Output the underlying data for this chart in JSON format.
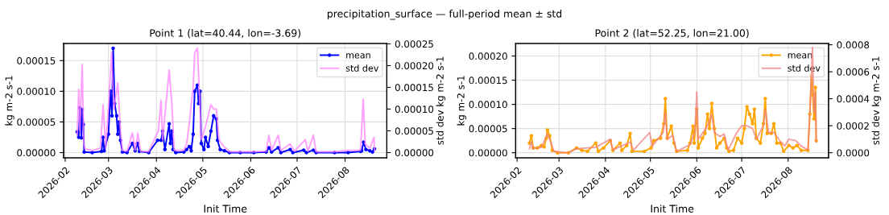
{
  "chart_data": [
    {
      "type": "line",
      "annotations": [
        "precipitation_surface — full-period mean ± std"
      ],
      "title": "Point 1 (lat=40.44, lon=-3.69)",
      "xlabel": "Init Time",
      "ylabel": "kg m-2 s-1",
      "y2label": "std dev kg m-2 s-1",
      "grid": true,
      "legend": "top right",
      "xlim": [
        "2026-01-31",
        "2026-08-28"
      ],
      "xticks": [
        {
          "value": "2026-02-01",
          "label": "2026-02"
        },
        {
          "value": "2026-03-01",
          "label": "2026-03"
        },
        {
          "value": "2026-04-01",
          "label": "2026-04"
        },
        {
          "value": "2026-05-01",
          "label": "2026-05"
        },
        {
          "value": "2026-06-01",
          "label": "2026-06"
        },
        {
          "value": "2026-07-01",
          "label": "2026-07"
        },
        {
          "value": "2026-08-01",
          "label": "2026-08"
        }
      ],
      "ylim": [
        -8.5e-06,
        0.000178
      ],
      "yticks": [
        {
          "value": 0,
          "label": "0.00000"
        },
        {
          "value": 5e-05,
          "label": "0.00005"
        },
        {
          "value": 0.0001,
          "label": "0.00010"
        },
        {
          "value": 0.00015,
          "label": "0.00015"
        }
      ],
      "y2lim": [
        -1.2e-05,
        0.000251
      ],
      "y2ticks": [
        {
          "value": 0,
          "label": "0.00000"
        },
        {
          "value": 5e-05,
          "label": "0.00005"
        },
        {
          "value": 0.0001,
          "label": "0.00010"
        },
        {
          "value": 0.00015,
          "label": "0.00015"
        },
        {
          "value": 0.0002,
          "label": "0.00020"
        },
        {
          "value": 0.00025,
          "label": "0.00025"
        }
      ],
      "series": [
        {
          "name": "mean",
          "color": "#0000ff",
          "marker": "circle",
          "line_style": "solid",
          "x": [
            "2026-02-08T18:00",
            "2026-02-09T18:00",
            "2026-02-10T12:00",
            "2026-02-11T12:00",
            "2026-02-12T00:00",
            "2026-02-12T18:00",
            "2026-02-13T06:00",
            "2026-02-18T12:00",
            "2026-02-24T12:00",
            "2026-02-25T12:00",
            "2026-02-26T06:00",
            "2026-03-01T00:00",
            "2026-03-02T06:00",
            "2026-03-03T06:00",
            "2026-03-04T00:00",
            "2026-03-05T00:00",
            "2026-03-06T06:00",
            "2026-03-07T00:00",
            "2026-03-08T00:00",
            "2026-03-08T18:00",
            "2026-03-10T00:00",
            "2026-03-13T00:00",
            "2026-03-16T12:00",
            "2026-03-18T06:00",
            "2026-03-19T18:00",
            "2026-03-21T00:00",
            "2026-03-27T00:00",
            "2026-04-01T18:00",
            "2026-04-04T00:00",
            "2026-04-05T00:00",
            "2026-04-06T12:00",
            "2026-04-09T06:00",
            "2026-04-10T00:00",
            "2026-04-11T00:00",
            "2026-04-11T18:00",
            "2026-04-13T12:00",
            "2026-04-18T18:00",
            "2026-04-20T12:00",
            "2026-04-22T06:00",
            "2026-04-23T12:00",
            "2026-04-24T18:00",
            "2026-04-25T18:00",
            "2026-04-27T12:00",
            "2026-04-28T06:00",
            "2026-04-29T06:00",
            "2026-04-30T00:00",
            "2026-05-01T18:00",
            "2026-05-02T18:00",
            "2026-05-04T12:00",
            "2026-05-06T06:00",
            "2026-05-08T00:00",
            "2026-05-09T18:00",
            "2026-05-10T12:00",
            "2026-05-12T06:00",
            "2026-05-15T00:00",
            "2026-05-18T06:00",
            "2026-05-25T06:00",
            "2026-06-03T00:00",
            "2026-06-11T00:00",
            "2026-06-12T18:00",
            "2026-06-14T12:00",
            "2026-06-18T18:00",
            "2026-06-20T12:00",
            "2026-06-26T12:00",
            "2026-06-28T06:00",
            "2026-07-05T06:00",
            "2026-07-07T00:00",
            "2026-07-11T12:00",
            "2026-07-13T06:00",
            "2026-07-25T06:00",
            "2026-08-03T00:00",
            "2026-08-11T00:00",
            "2026-08-11T18:00",
            "2026-08-13T00:00",
            "2026-08-14T12:00",
            "2026-08-17T00:00",
            "2026-08-18T18:00",
            "2026-08-20T00:00"
          ],
          "values": [
            3.4e-05,
            2.5e-05,
            7.3e-05,
            2.4e-05,
            7e-05,
            4.6e-05,
            1e-06,
            0,
            2e-06,
            2.5e-05,
            3e-06,
            3e-05,
            0.0001,
            6e-05,
            0.00017,
            8e-05,
            6e-05,
            3e-05,
            5e-05,
            2e-05,
            1e-06,
            0,
            1.5e-05,
            3e-06,
            1.5e-05,
            2e-06,
            0,
            2e-05,
            2e-05,
            3.5e-05,
            5e-06,
            4.7e-05,
            1.5e-05,
            3.5e-05,
            5e-06,
            0,
            1e-06,
            5e-06,
            1e-05,
            3e-06,
            3e-05,
            0.0001,
            0.00011,
            8e-05,
            0.0001,
            1.5e-05,
            5e-06,
            2.5e-05,
            1e-05,
            3.5e-05,
            6e-05,
            5.5e-05,
            2e-05,
            5e-06,
            3e-06,
            0,
            0,
            0,
            1e-06,
            8e-06,
            1e-06,
            8e-06,
            0,
            5e-06,
            0,
            4e-06,
            0,
            4e-06,
            0,
            0,
            0,
            2e-06,
            3e-06,
            1.7e-05,
            5e-06,
            3e-06,
            1e-06,
            6e-06
          ]
        },
        {
          "name": "std dev",
          "color": "#ff80ff",
          "axis": "y2",
          "marker": "none",
          "line_style": "solid",
          "x": [
            "2026-02-08T18:00",
            "2026-02-09T18:00",
            "2026-02-10T12:00",
            "2026-02-12T00:00",
            "2026-02-13T00:00",
            "2026-02-14T00:00",
            "2026-02-18T12:00",
            "2026-02-23T18:00",
            "2026-02-25T12:00",
            "2026-02-27T06:00",
            "2026-03-01T18:00",
            "2026-03-03T00:00",
            "2026-03-04T12:00",
            "2026-03-07T00:00",
            "2026-03-08T18:00",
            "2026-03-10T00:00",
            "2026-03-13T00:00",
            "2026-03-16T12:00",
            "2026-03-18T06:00",
            "2026-03-20T00:00",
            "2026-03-21T18:00",
            "2026-03-27T00:00",
            "2026-04-02T06:00",
            "2026-04-04T00:00",
            "2026-04-05T00:00",
            "2026-04-09T06:00",
            "2026-04-11T00:00",
            "2026-04-12T12:00",
            "2026-04-18T18:00",
            "2026-04-20T12:00",
            "2026-04-22T00:00",
            "2026-04-24T18:00",
            "2026-04-25T18:00",
            "2026-04-27T12:00",
            "2026-04-28T18:00",
            "2026-04-30T00:00",
            "2026-05-02T18:00",
            "2026-05-06T06:00",
            "2026-05-08T00:00",
            "2026-05-09T18:00",
            "2026-05-11T12:00",
            "2026-05-13T06:00",
            "2026-05-15T18:00",
            "2026-05-18T06:00",
            "2026-06-03T00:00",
            "2026-06-11T00:00",
            "2026-06-12T18:00",
            "2026-06-14T12:00",
            "2026-06-18T18:00",
            "2026-06-20T12:00",
            "2026-06-26T12:00",
            "2026-06-29T06:00",
            "2026-07-06T06:00",
            "2026-07-08T00:00",
            "2026-07-11T12:00",
            "2026-07-13T06:00",
            "2026-07-25T06:00",
            "2026-08-03T00:00",
            "2026-08-11T00:00",
            "2026-08-12T18:00",
            "2026-08-14T00:00",
            "2026-08-17T00:00",
            "2026-08-19T18:00",
            "2026-08-20T00:00"
          ],
          "values": [
            4e-05,
            0.000145,
            5e-05,
            0.000203,
            2e-05,
            8e-06,
            5e-06,
            1e-05,
            0.00011,
            1e-05,
            0.00015,
            0.00023,
            0.0001,
            0.00016,
            5e-05,
            5e-06,
            3e-06,
            4.5e-05,
            5e-06,
            4.5e-05,
            3e-06,
            2e-06,
            5e-05,
            0.00012,
            3e-05,
            0.00019,
            0.00011,
            5e-06,
            5e-06,
            2e-05,
            6e-05,
            0.00015,
            0.00023,
            0.00024,
            0.00014,
            3e-05,
            6e-05,
            0.00011,
            0.0001,
            0.0001,
            3e-05,
            2e-05,
            1e-05,
            2e-06,
            2e-06,
            3e-06,
            4e-05,
            5e-06,
            4e-05,
            5e-06,
            2e-05,
            3e-06,
            3e-05,
            3e-06,
            4e-05,
            2e-06,
            2e-06,
            5e-06,
            5e-06,
            0.000123,
            2e-05,
            1e-05,
            3.5e-05,
            5e-06
          ]
        }
      ]
    },
    {
      "type": "line",
      "title": "Point 2 (lat=52.25, lon=21.00)",
      "xlabel": "Init Time",
      "ylabel": "kg m-2 s-1",
      "y2label": "std dev kg m-2 s-1",
      "grid": true,
      "legend": "top right",
      "xlim": [
        "2026-01-31",
        "2026-08-28"
      ],
      "xticks": [
        {
          "value": "2026-02-01",
          "label": "2026-02"
        },
        {
          "value": "2026-03-01",
          "label": "2026-03"
        },
        {
          "value": "2026-04-01",
          "label": "2026-04"
        },
        {
          "value": "2026-05-01",
          "label": "2026-05"
        },
        {
          "value": "2026-06-01",
          "label": "2026-06"
        },
        {
          "value": "2026-07-01",
          "label": "2026-07"
        },
        {
          "value": "2026-08-01",
          "label": "2026-08"
        }
      ],
      "ylim": [
        -1.05e-05,
        0.000226
      ],
      "yticks": [
        {
          "value": 0,
          "label": "0.00000"
        },
        {
          "value": 5e-05,
          "label": "0.00005"
        },
        {
          "value": 0.0001,
          "label": "0.00010"
        },
        {
          "value": 0.00015,
          "label": "0.00015"
        },
        {
          "value": 0.0002,
          "label": "0.00020"
        }
      ],
      "y2lim": [
        -3.76e-05,
        0.00081
      ],
      "y2ticks": [
        {
          "value": 0,
          "label": "0.0000"
        },
        {
          "value": 0.0002,
          "label": "0.0002"
        },
        {
          "value": 0.0004,
          "label": "0.0004"
        },
        {
          "value": 0.0006,
          "label": "0.0006"
        },
        {
          "value": 0.0008,
          "label": "0.0008"
        }
      ],
      "series": [
        {
          "name": "mean",
          "color": "#ffa500",
          "marker": "circle",
          "line_style": "solid",
          "x": [
            "2026-02-09T06:00",
            "2026-02-10T12:00",
            "2026-02-11T18:00",
            "2026-02-14T12:00",
            "2026-02-17T06:00",
            "2026-02-19T00:00",
            "2026-02-20T12:00",
            "2026-02-21T06:00",
            "2026-02-22T18:00",
            "2026-02-24T12:00",
            "2026-02-28T00:00",
            "2026-03-07T06:00",
            "2026-03-12T18:00",
            "2026-03-16T06:00",
            "2026-03-20T00:00",
            "2026-03-25T12:00",
            "2026-03-27T06:00",
            "2026-03-30T18:00",
            "2026-04-04T06:00",
            "2026-04-06T00:00",
            "2026-04-10T18:00",
            "2026-04-12T00:00",
            "2026-04-15T06:00",
            "2026-04-17T12:00",
            "2026-04-18T18:00",
            "2026-04-27T00:00",
            "2026-05-01T12:00",
            "2026-05-03T06:00",
            "2026-05-07T18:00",
            "2026-05-10T00:00",
            "2026-05-11T00:00",
            "2026-05-12T06:00",
            "2026-05-15T00:00",
            "2026-05-16T18:00",
            "2026-05-18T12:00",
            "2026-05-25T18:00",
            "2026-05-27T12:00",
            "2026-05-29T12:00",
            "2026-05-30T06:00",
            "2026-06-01T00:00",
            "2026-06-02T00:00",
            "2026-06-04T18:00",
            "2026-06-06T12:00",
            "2026-06-08T06:00",
            "2026-06-09T12:00",
            "2026-06-11T00:00",
            "2026-06-12T18:00",
            "2026-06-14T06:00",
            "2026-06-16T12:00",
            "2026-06-19T06:00",
            "2026-06-21T00:00",
            "2026-06-22T12:00",
            "2026-06-25T12:00",
            "2026-06-28T06:00",
            "2026-07-01T00:00",
            "2026-07-02T18:00",
            "2026-07-04T12:00",
            "2026-07-06T06:00",
            "2026-07-08T06:00",
            "2026-07-09T12:00",
            "2026-07-10T18:00",
            "2026-07-13T12:00",
            "2026-07-15T12:00",
            "2026-07-16T18:00",
            "2026-07-18T00:00",
            "2026-07-20T18:00",
            "2026-07-22T12:00",
            "2026-07-24T12:00",
            "2026-07-27T00:00",
            "2026-07-29T00:00",
            "2026-08-01T12:00",
            "2026-08-04T06:00",
            "2026-08-07T00:00",
            "2026-08-09T18:00",
            "2026-08-14T06:00",
            "2026-08-15T12:00",
            "2026-08-16T12:00",
            "2026-08-17T12:00",
            "2026-08-18T06:00",
            "2026-08-19T06:00",
            "2026-08-19T18:00"
          ],
          "values": [
            2e-05,
            3.5e-05,
            1e-05,
            1e-05,
            1.5e-05,
            1.2e-05,
            3e-05,
            4.7e-05,
            3.5e-05,
            5e-06,
            0,
            0,
            1e-05,
            5e-06,
            3e-06,
            2e-05,
            3e-06,
            1e-05,
            2.5e-05,
            5e-06,
            2e-05,
            5e-06,
            1.5e-05,
            4e-05,
            3e-06,
            3e-06,
            1e-05,
            2.5e-05,
            3e-05,
            6e-05,
            0.000112,
            3e-05,
            5.5e-05,
            2e-05,
            3e-06,
            5e-06,
            2e-05,
            5.5e-05,
            2e-05,
            9e-05,
            1e-05,
            3e-05,
            4e-05,
            8e-05,
            5e-05,
            0.000102,
            5e-05,
            1e-05,
            2e-05,
            3e-05,
            1e-05,
            3e-06,
            5e-06,
            3e-05,
            2e-05,
            5e-05,
            9.5e-05,
            8e-05,
            6e-05,
            9e-05,
            3e-05,
            2e-05,
            6e-05,
            0.000112,
            4e-05,
            4e-05,
            6e-05,
            2e-05,
            2e-05,
            3e-06,
            1.5e-05,
            1e-05,
            1.5e-05,
            5e-06,
            5e-06,
            8e-05,
            0.00016,
            0.00012,
            7e-05,
            0.000135,
            2.5e-05
          ]
        },
        {
          "name": "std dev",
          "color": "#f08080",
          "axis": "y2",
          "marker": "none",
          "line_style": "solid",
          "x": [
            "2026-02-09T06:00",
            "2026-02-10T12:00",
            "2026-02-11T18:00",
            "2026-02-17T06:00",
            "2026-02-21T06:00",
            "2026-02-23T12:00",
            "2026-02-25T12:00",
            "2026-03-07T06:00",
            "2026-03-12T18:00",
            "2026-03-25T12:00",
            "2026-04-04T06:00",
            "2026-04-06T00:00",
            "2026-04-17T12:00",
            "2026-04-19T18:00",
            "2026-04-30T12:00",
            "2026-05-02T06:00",
            "2026-05-09T12:00",
            "2026-05-11T00:00",
            "2026-05-12T06:00",
            "2026-05-16T00:00",
            "2026-05-18T12:00",
            "2026-05-27T12:00",
            "2026-05-30T18:00",
            "2026-06-01T00:00",
            "2026-06-02T00:00",
            "2026-06-08T06:00",
            "2026-06-11T00:00",
            "2026-06-12T18:00",
            "2026-06-16T12:00",
            "2026-06-19T06:00",
            "2026-06-22T00:00",
            "2026-06-27T06:00",
            "2026-07-01T00:00",
            "2026-07-04T12:00",
            "2026-07-08T06:00",
            "2026-07-10T18:00",
            "2026-07-15T12:00",
            "2026-07-16T18:00",
            "2026-07-19T00:00",
            "2026-07-22T12:00",
            "2026-07-27T00:00",
            "2026-07-29T18:00",
            "2026-08-01T12:00",
            "2026-08-06T00:00",
            "2026-08-09T18:00",
            "2026-08-14T06:00",
            "2026-08-16T00:00",
            "2026-08-17T06:00",
            "2026-08-18T06:00",
            "2026-08-19T06:00",
            "2026-08-19T18:00"
          ],
          "values": [
            3e-05,
            8e-05,
            3e-05,
            4e-05,
            0.00014,
            8e-05,
            1e-05,
            0,
            3e-05,
            4e-05,
            0.0001,
            2e-05,
            8e-05,
            2e-05,
            0.00015,
            5e-05,
            0.00015,
            0.0003,
            0.0001,
            0.00013,
            1e-05,
            6e-05,
            0.00015,
            0.00045,
            0.0001,
            0.0002,
            0.00028,
            0.00015,
            0.00012,
            0.00014,
            2e-05,
            0.00014,
            0.0002,
            0.0002,
            0.00018,
            0.0001,
            0.0002,
            0.00032,
            0.00015,
            0.00015,
            8e-05,
            5e-05,
            0.0001,
            9e-05,
            5e-05,
            2e-05,
            0.0004,
            0.00078,
            0.0003,
            0.00045,
            8e-05
          ]
        }
      ]
    }
  ]
}
